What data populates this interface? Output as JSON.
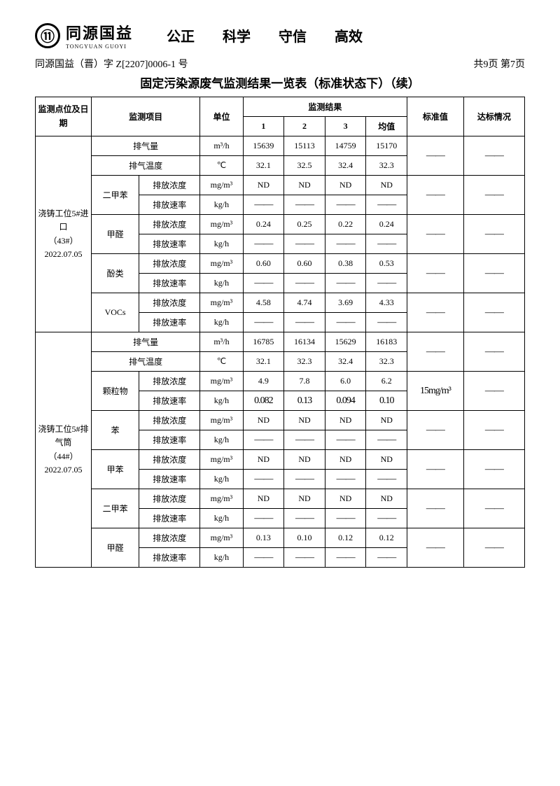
{
  "header": {
    "company_cn": "同源国益",
    "company_en": "TONGYUAN GUOYI",
    "motto": [
      "公正",
      "科学",
      "守信",
      "高效"
    ]
  },
  "doc": {
    "number": "同源国益（晋）字 Z[2207]0006-1 号",
    "pages": "共9页 第7页",
    "title": "固定污染源废气监测结果一览表（标准状态下）（续）"
  },
  "columns": {
    "location": "监测点位及日期",
    "item": "监测项目",
    "unit": "单位",
    "results": "监测结果",
    "c1": "1",
    "c2": "2",
    "c3": "3",
    "avg": "均值",
    "std": "标准值",
    "compliance": "达标情况"
  },
  "units": {
    "m3h": "m³/h",
    "celsius": "℃",
    "mgm3": "mg/m³",
    "kgh": "kg/h"
  },
  "labels": {
    "emission_conc": "排放浓度",
    "emission_rate": "排放速率",
    "exhaust_vol": "排气量",
    "exhaust_temp": "排气温度"
  },
  "dash": "——",
  "sections": [
    {
      "location": "浇铸工位5#进口（43#）2022.07.05",
      "exhaust_vol": [
        "15639",
        "15113",
        "14759",
        "15170"
      ],
      "exhaust_temp": [
        "32.1",
        "32.5",
        "32.4",
        "32.3"
      ],
      "pollutants": [
        {
          "name": "二甲苯",
          "conc": [
            "ND",
            "ND",
            "ND",
            "ND"
          ],
          "rate": [
            "——",
            "——",
            "——",
            "——"
          ],
          "std": "——",
          "comp": "——"
        },
        {
          "name": "甲醛",
          "conc": [
            "0.24",
            "0.25",
            "0.22",
            "0.24"
          ],
          "rate": [
            "——",
            "——",
            "——",
            "——"
          ],
          "std": "——",
          "comp": "——"
        },
        {
          "name": "酚类",
          "conc": [
            "0.60",
            "0.60",
            "0.38",
            "0.53"
          ],
          "rate": [
            "——",
            "——",
            "——",
            "——"
          ],
          "std": "——",
          "comp": "——"
        },
        {
          "name": "VOCs",
          "conc": [
            "4.58",
            "4.74",
            "3.69",
            "4.33"
          ],
          "rate": [
            "——",
            "——",
            "——",
            "——"
          ],
          "std": "——",
          "comp": "——"
        }
      ]
    },
    {
      "location": "浇铸工位5#排气筒（44#）2022.07.05",
      "exhaust_vol": [
        "16785",
        "16134",
        "15629",
        "16183"
      ],
      "exhaust_temp": [
        "32.1",
        "32.3",
        "32.4",
        "32.3"
      ],
      "pollutants": [
        {
          "name": "颗粒物",
          "conc": [
            "4.9",
            "7.8",
            "6.0",
            "6.2"
          ],
          "rate": [
            "0.082",
            "0.13",
            "0.094",
            "0.10"
          ],
          "std": "15mg/m³",
          "comp": "——"
        },
        {
          "name": "苯",
          "conc": [
            "ND",
            "ND",
            "ND",
            "ND"
          ],
          "rate": [
            "——",
            "——",
            "——",
            "——"
          ],
          "std": "——",
          "comp": "——"
        },
        {
          "name": "甲苯",
          "conc": [
            "ND",
            "ND",
            "ND",
            "ND"
          ],
          "rate": [
            "——",
            "——",
            "——",
            "——"
          ],
          "std": "——",
          "comp": "——"
        },
        {
          "name": "二甲苯",
          "conc": [
            "ND",
            "ND",
            "ND",
            "ND"
          ],
          "rate": [
            "——",
            "——",
            "——",
            "——"
          ],
          "std": "——",
          "comp": "——"
        },
        {
          "name": "甲醛",
          "conc": [
            "0.13",
            "0.10",
            "0.12",
            "0.12"
          ],
          "rate": [
            "——",
            "——",
            "——",
            "——"
          ],
          "std": "——",
          "comp": "——"
        }
      ]
    }
  ]
}
